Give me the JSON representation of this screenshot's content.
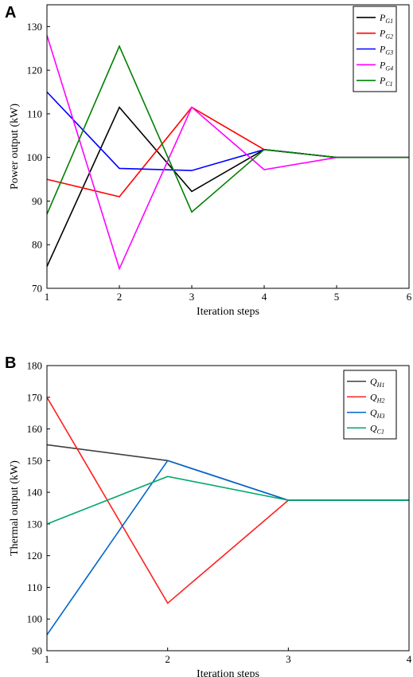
{
  "chart_data": [
    {
      "panel": "A",
      "type": "line",
      "xlabel": "Iteration steps",
      "ylabel": "Power output (kW)",
      "xlim": [
        1,
        6
      ],
      "ylim": [
        70,
        135
      ],
      "xticks": [
        "1",
        "2",
        "3",
        "4",
        "5",
        "6"
      ],
      "yticks": [
        "70",
        "80",
        "90",
        "100",
        "110",
        "120",
        "130"
      ],
      "grid": false,
      "legend_position": "top-right",
      "x": [
        1,
        2,
        3,
        4,
        5,
        6
      ],
      "series": [
        {
          "name": "P",
          "sub": "G1",
          "color": "#000000",
          "values": [
            75,
            111.5,
            92.2,
            101.8,
            100,
            100
          ]
        },
        {
          "name": "P",
          "sub": "G2",
          "color": "#ff0000",
          "values": [
            95,
            91,
            111.5,
            101.8,
            100,
            100
          ]
        },
        {
          "name": "P",
          "sub": "G3",
          "color": "#0000ff",
          "values": [
            115,
            97.5,
            97,
            101.8,
            100,
            100
          ]
        },
        {
          "name": "P",
          "sub": "G4",
          "color": "#ff00ff",
          "values": [
            128,
            74.5,
            111.5,
            97.2,
            100,
            100
          ]
        },
        {
          "name": "P",
          "sub": "C1",
          "color": "#008000",
          "values": [
            87,
            125.5,
            87.5,
            101.8,
            100,
            100
          ]
        }
      ]
    },
    {
      "panel": "B",
      "type": "line",
      "xlabel": "Iteration steps",
      "ylabel": "Thermal output (kW)",
      "xlim": [
        1,
        4
      ],
      "ylim": [
        90,
        180
      ],
      "xticks": [
        "1",
        "2",
        "3",
        "4"
      ],
      "yticks": [
        "90",
        "100",
        "110",
        "120",
        "130",
        "140",
        "150",
        "160",
        "170",
        "180"
      ],
      "grid": false,
      "legend_position": "top-right",
      "x": [
        1,
        2,
        3,
        4
      ],
      "series": [
        {
          "name": "Q",
          "sub": "H1",
          "color": "#404040",
          "values": [
            155,
            150,
            137.5,
            137.5
          ]
        },
        {
          "name": "Q",
          "sub": "H2",
          "color": "#ff2020",
          "values": [
            170,
            105,
            137.5,
            137.5
          ]
        },
        {
          "name": "Q",
          "sub": "H3",
          "color": "#0066cc",
          "values": [
            95,
            150,
            137.5,
            137.5
          ]
        },
        {
          "name": "Q",
          "sub": "C1",
          "color": "#00a86b",
          "values": [
            130,
            145,
            137.5,
            137.5
          ]
        }
      ]
    }
  ]
}
